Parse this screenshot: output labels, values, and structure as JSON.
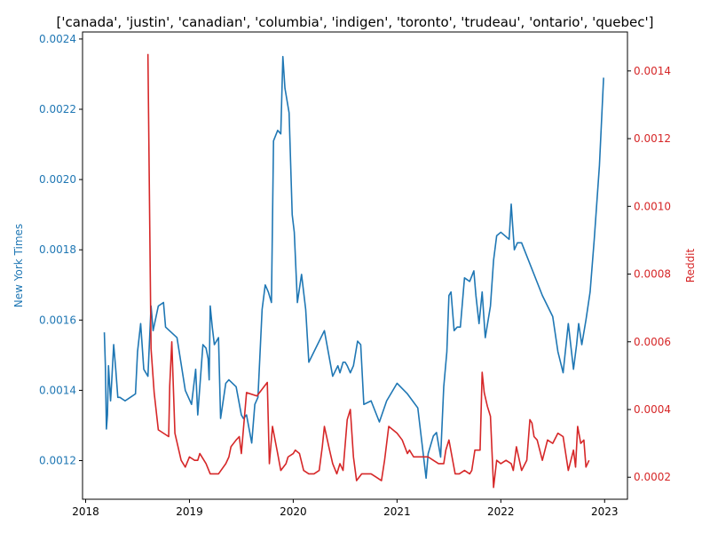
{
  "chart_data": {
    "type": "line",
    "title": "['canada', 'justin', 'canadian', 'columbia', 'indigen', 'toronto', 'trudeau', 'ontario', 'quebec']",
    "xlabel": "",
    "x_ticks": [
      "2018",
      "2019",
      "2020",
      "2021",
      "2022",
      "2023"
    ],
    "xlim": [
      2017.97,
      2023.22
    ],
    "y_left": {
      "label": "New York Times",
      "color": "#1f77b4",
      "ylim": [
        0.00109,
        0.00242
      ],
      "ticks": [
        "0.0012",
        "0.0014",
        "0.0016",
        "0.0018",
        "0.0020",
        "0.0022",
        "0.0024"
      ]
    },
    "y_right": {
      "label": "Reddit",
      "color": "#d62728",
      "ylim": [
        0.000135,
        0.001515
      ],
      "ticks": [
        "0.0002",
        "0.0004",
        "0.0006",
        "0.0008",
        "0.0010",
        "0.0012",
        "0.0014"
      ]
    },
    "series": [
      {
        "axis": "left",
        "color": "#1f77b4",
        "x": [
          2018.18,
          2018.19,
          2018.2,
          2018.21,
          2018.22,
          2018.24,
          2018.25,
          2018.27,
          2018.29,
          2018.31,
          2018.33,
          2018.38,
          2018.43,
          2018.48,
          2018.5,
          2018.53,
          2018.56,
          2018.6,
          2018.63,
          2018.65,
          2018.7,
          2018.75,
          2018.77,
          2018.88,
          2018.96,
          2019.02,
          2019.04,
          2019.06,
          2019.08,
          2019.13,
          2019.16,
          2019.18,
          2019.19,
          2019.2,
          2019.22,
          2019.24,
          2019.28,
          2019.3,
          2019.35,
          2019.38,
          2019.45,
          2019.5,
          2019.52,
          2019.55,
          2019.6,
          2019.63,
          2019.66,
          2019.7,
          2019.73,
          2019.76,
          2019.79,
          2019.81,
          2019.85,
          2019.88,
          2019.9,
          2019.92,
          2019.96,
          2019.99,
          2020.01,
          2020.04,
          2020.08,
          2020.12,
          2020.15,
          2020.3,
          2020.38,
          2020.43,
          2020.45,
          2020.48,
          2020.5,
          2020.52,
          2020.55,
          2020.58,
          2020.62,
          2020.65,
          2020.68,
          2020.75,
          2020.83,
          2020.9,
          2021.0,
          2021.1,
          2021.2,
          2021.28,
          2021.3,
          2021.35,
          2021.38,
          2021.42,
          2021.45,
          2021.48,
          2021.5,
          2021.52,
          2021.55,
          2021.58,
          2021.61,
          2021.65,
          2021.7,
          2021.74,
          2021.76,
          2021.79,
          2021.82,
          2021.85,
          2021.9,
          2021.93,
          2021.96,
          2022.0,
          2022.08,
          2022.1,
          2022.13,
          2022.16,
          2022.2,
          2022.4,
          2022.5,
          2022.55,
          2022.6,
          2022.65,
          2022.7,
          2022.73,
          2022.75,
          2022.78,
          2022.82,
          2022.86,
          2022.9,
          2022.95,
          2022.99
        ],
        "y": [
          0.001565,
          0.00147,
          0.00129,
          0.00133,
          0.00147,
          0.00137,
          0.00142,
          0.00153,
          0.00146,
          0.00138,
          0.00138,
          0.00137,
          0.00138,
          0.00139,
          0.00151,
          0.00159,
          0.00146,
          0.00144,
          0.00164,
          0.00157,
          0.00164,
          0.00165,
          0.00158,
          0.00155,
          0.0014,
          0.00136,
          0.00141,
          0.00146,
          0.00133,
          0.00153,
          0.00152,
          0.00149,
          0.00143,
          0.00164,
          0.00158,
          0.00153,
          0.00155,
          0.00132,
          0.00142,
          0.00143,
          0.00141,
          0.00133,
          0.00132,
          0.00133,
          0.00125,
          0.00136,
          0.00138,
          0.00163,
          0.0017,
          0.00168,
          0.00165,
          0.00211,
          0.00214,
          0.00213,
          0.00235,
          0.00226,
          0.00219,
          0.0019,
          0.00185,
          0.00165,
          0.00173,
          0.00163,
          0.00148,
          0.00157,
          0.00144,
          0.00147,
          0.00145,
          0.00148,
          0.00148,
          0.00147,
          0.00145,
          0.00147,
          0.00154,
          0.00153,
          0.00136,
          0.00137,
          0.00131,
          0.00137,
          0.00142,
          0.00139,
          0.00135,
          0.00115,
          0.00122,
          0.00127,
          0.00128,
          0.00121,
          0.00141,
          0.00151,
          0.00167,
          0.00168,
          0.00157,
          0.00158,
          0.00158,
          0.00172,
          0.00171,
          0.00174,
          0.00167,
          0.00159,
          0.00168,
          0.00155,
          0.00164,
          0.00177,
          0.00184,
          0.00185,
          0.00183,
          0.00193,
          0.0018,
          0.00182,
          0.00182,
          0.00167,
          0.00161,
          0.00151,
          0.00145,
          0.00159,
          0.00146,
          0.00153,
          0.00159,
          0.00153,
          0.0016,
          0.00168,
          0.00183,
          0.00204,
          0.00229
        ]
      },
      {
        "axis": "right",
        "color": "#d62728",
        "x": [
          2018.6,
          2018.63,
          2018.66,
          2018.7,
          2018.8,
          2018.81,
          2018.83,
          2018.86,
          2018.92,
          2018.96,
          2019.0,
          2019.05,
          2019.08,
          2019.1,
          2019.16,
          2019.2,
          2019.28,
          2019.35,
          2019.38,
          2019.4,
          2019.45,
          2019.48,
          2019.5,
          2019.55,
          2019.65,
          2019.7,
          2019.75,
          2019.77,
          2019.8,
          2019.85,
          2019.88,
          2019.93,
          2019.95,
          2020.0,
          2020.02,
          2020.06,
          2020.1,
          2020.15,
          2020.2,
          2020.25,
          2020.28,
          2020.3,
          2020.35,
          2020.38,
          2020.42,
          2020.45,
          2020.48,
          2020.52,
          2020.55,
          2020.58,
          2020.61,
          2020.66,
          2020.75,
          2020.8,
          2020.85,
          2020.88,
          2020.92,
          2021.0,
          2021.05,
          2021.1,
          2021.12,
          2021.16,
          2021.25,
          2021.3,
          2021.35,
          2021.4,
          2021.45,
          2021.47,
          2021.5,
          2021.53,
          2021.56,
          2021.6,
          2021.65,
          2021.7,
          2021.72,
          2021.75,
          2021.8,
          2021.82,
          2021.84,
          2021.87,
          2021.9,
          2021.93,
          2021.96,
          2022.0,
          2022.05,
          2022.1,
          2022.12,
          2022.15,
          2022.2,
          2022.25,
          2022.28,
          2022.3,
          2022.32,
          2022.35,
          2022.4,
          2022.45,
          2022.5,
          2022.55,
          2022.6,
          2022.65,
          2022.7,
          2022.72,
          2022.74,
          2022.77,
          2022.8,
          2022.82,
          2022.85
        ],
        "y": [
          0.00145,
          0.00058,
          0.00045,
          0.00034,
          0.00032,
          0.00047,
          0.0006,
          0.00033,
          0.00025,
          0.00023,
          0.00026,
          0.00025,
          0.00025,
          0.00027,
          0.00024,
          0.00021,
          0.00021,
          0.00024,
          0.00026,
          0.00029,
          0.00031,
          0.00032,
          0.00027,
          0.00045,
          0.00044,
          0.00046,
          0.00048,
          0.00024,
          0.00035,
          0.00027,
          0.00022,
          0.00024,
          0.00026,
          0.00027,
          0.00028,
          0.00027,
          0.00022,
          0.00021,
          0.00021,
          0.00022,
          0.00029,
          0.00035,
          0.00028,
          0.00024,
          0.00021,
          0.00024,
          0.00022,
          0.00037,
          0.0004,
          0.00026,
          0.00019,
          0.00021,
          0.00021,
          0.0002,
          0.00019,
          0.00025,
          0.00035,
          0.00033,
          0.00031,
          0.00027,
          0.00028,
          0.00026,
          0.00026,
          0.00026,
          0.00025,
          0.00024,
          0.00024,
          0.00028,
          0.00031,
          0.00026,
          0.00021,
          0.00021,
          0.00022,
          0.00021,
          0.00022,
          0.00028,
          0.00028,
          0.00051,
          0.00045,
          0.00041,
          0.00038,
          0.00017,
          0.00025,
          0.00024,
          0.00025,
          0.00024,
          0.00022,
          0.00029,
          0.00022,
          0.00025,
          0.00037,
          0.00036,
          0.00032,
          0.00031,
          0.00025,
          0.00031,
          0.0003,
          0.00033,
          0.00032,
          0.00022,
          0.00028,
          0.00023,
          0.00035,
          0.0003,
          0.00031,
          0.00023,
          0.00025
        ]
      }
    ]
  }
}
